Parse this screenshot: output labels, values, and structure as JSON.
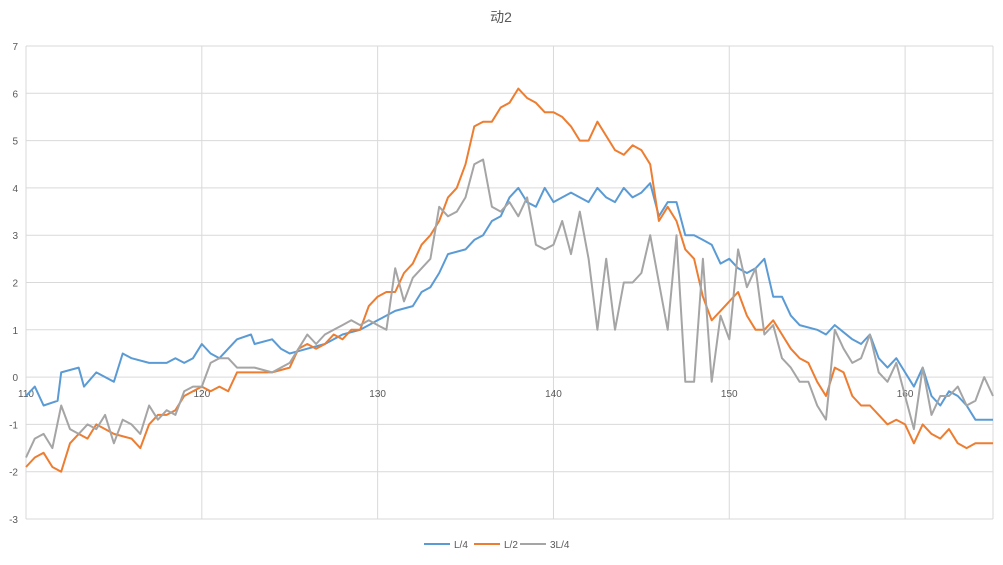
{
  "chart_data": {
    "type": "line",
    "title": "动2",
    "xlabel": "",
    "ylabel": "",
    "xlim": [
      110,
      165
    ],
    "ylim": [
      -3,
      7
    ],
    "xticks": [
      110,
      120,
      130,
      140,
      150,
      160
    ],
    "yticks": [
      -3,
      -2,
      -1,
      0,
      1,
      2,
      3,
      4,
      5,
      6,
      7
    ],
    "grid": true,
    "legend_position": "bottom",
    "series": [
      {
        "name": "L/4",
        "color": "#5b9bd5",
        "points": [
          [
            110,
            -0.4
          ],
          [
            110.5,
            -0.2
          ],
          [
            111,
            -0.6
          ],
          [
            111.8,
            -0.5
          ],
          [
            112,
            0.1
          ],
          [
            113,
            0.2
          ],
          [
            113.3,
            -0.2
          ],
          [
            114,
            0.1
          ],
          [
            115,
            -0.1
          ],
          [
            115.5,
            0.5
          ],
          [
            116,
            0.4
          ],
          [
            117,
            0.3
          ],
          [
            118,
            0.3
          ],
          [
            118.5,
            0.4
          ],
          [
            119,
            0.3
          ],
          [
            119.5,
            0.4
          ],
          [
            120,
            0.7
          ],
          [
            120.5,
            0.5
          ],
          [
            121,
            0.4
          ],
          [
            122,
            0.8
          ],
          [
            122.8,
            0.9
          ],
          [
            123,
            0.7
          ],
          [
            124,
            0.8
          ],
          [
            124.5,
            0.6
          ],
          [
            125,
            0.5
          ],
          [
            126,
            0.6
          ],
          [
            127,
            0.7
          ],
          [
            128,
            0.9
          ],
          [
            129,
            1.0
          ],
          [
            129.5,
            1.1
          ],
          [
            130,
            1.2
          ],
          [
            131,
            1.4
          ],
          [
            132,
            1.5
          ],
          [
            132.5,
            1.8
          ],
          [
            133,
            1.9
          ],
          [
            133.5,
            2.2
          ],
          [
            134,
            2.6
          ],
          [
            135,
            2.7
          ],
          [
            135.5,
            2.9
          ],
          [
            136,
            3.0
          ],
          [
            136.5,
            3.3
          ],
          [
            137,
            3.4
          ],
          [
            137.5,
            3.8
          ],
          [
            138,
            4.0
          ],
          [
            138.5,
            3.7
          ],
          [
            139,
            3.6
          ],
          [
            139.5,
            4.0
          ],
          [
            140,
            3.7
          ],
          [
            140.5,
            3.8
          ],
          [
            141,
            3.9
          ],
          [
            141.5,
            3.8
          ],
          [
            142,
            3.7
          ],
          [
            142.5,
            4.0
          ],
          [
            143,
            3.8
          ],
          [
            143.5,
            3.7
          ],
          [
            144,
            4.0
          ],
          [
            144.5,
            3.8
          ],
          [
            145,
            3.9
          ],
          [
            145.5,
            4.1
          ],
          [
            146,
            3.4
          ],
          [
            146.5,
            3.7
          ],
          [
            147,
            3.7
          ],
          [
            147.5,
            3.0
          ],
          [
            148,
            3.0
          ],
          [
            148.5,
            2.9
          ],
          [
            149,
            2.8
          ],
          [
            149.5,
            2.4
          ],
          [
            150,
            2.5
          ],
          [
            150.5,
            2.3
          ],
          [
            151,
            2.2
          ],
          [
            151.5,
            2.3
          ],
          [
            152,
            2.5
          ],
          [
            152.5,
            1.7
          ],
          [
            153,
            1.7
          ],
          [
            153.5,
            1.3
          ],
          [
            154,
            1.1
          ],
          [
            155,
            1.0
          ],
          [
            155.5,
            0.9
          ],
          [
            156,
            1.1
          ],
          [
            157,
            0.8
          ],
          [
            157.5,
            0.7
          ],
          [
            158,
            0.9
          ],
          [
            158.5,
            0.4
          ],
          [
            159,
            0.2
          ],
          [
            159.5,
            0.4
          ],
          [
            160,
            0.1
          ],
          [
            160.5,
            -0.2
          ],
          [
            161,
            0.2
          ],
          [
            161.5,
            -0.4
          ],
          [
            162,
            -0.6
          ],
          [
            162.5,
            -0.3
          ],
          [
            163,
            -0.4
          ],
          [
            163.5,
            -0.6
          ],
          [
            164,
            -0.9
          ],
          [
            164.5,
            -0.9
          ],
          [
            165,
            -0.9
          ]
        ]
      },
      {
        "name": "L/2",
        "color": "#ed7d31",
        "points": [
          [
            110,
            -1.9
          ],
          [
            110.5,
            -1.7
          ],
          [
            111,
            -1.6
          ],
          [
            111.5,
            -1.9
          ],
          [
            112,
            -2.0
          ],
          [
            112.5,
            -1.4
          ],
          [
            113,
            -1.2
          ],
          [
            113.5,
            -1.3
          ],
          [
            114,
            -1.0
          ],
          [
            114.5,
            -1.1
          ],
          [
            115,
            -1.2
          ],
          [
            116,
            -1.3
          ],
          [
            116.5,
            -1.5
          ],
          [
            117,
            -1.0
          ],
          [
            117.5,
            -0.8
          ],
          [
            118,
            -0.8
          ],
          [
            118.5,
            -0.7
          ],
          [
            119,
            -0.4
          ],
          [
            119.5,
            -0.3
          ],
          [
            120,
            -0.2
          ],
          [
            120.5,
            -0.3
          ],
          [
            121,
            -0.2
          ],
          [
            121.5,
            -0.3
          ],
          [
            122,
            0.1
          ],
          [
            123,
            0.1
          ],
          [
            124,
            0.1
          ],
          [
            125,
            0.2
          ],
          [
            125.5,
            0.6
          ],
          [
            126,
            0.7
          ],
          [
            126.5,
            0.6
          ],
          [
            127,
            0.7
          ],
          [
            127.5,
            0.9
          ],
          [
            128,
            0.8
          ],
          [
            128.5,
            1.0
          ],
          [
            129,
            1.0
          ],
          [
            129.5,
            1.5
          ],
          [
            130,
            1.7
          ],
          [
            130.5,
            1.8
          ],
          [
            131,
            1.8
          ],
          [
            131.5,
            2.2
          ],
          [
            132,
            2.4
          ],
          [
            132.5,
            2.8
          ],
          [
            133,
            3.0
          ],
          [
            133.5,
            3.3
          ],
          [
            134,
            3.8
          ],
          [
            134.5,
            4.0
          ],
          [
            135,
            4.5
          ],
          [
            135.5,
            5.3
          ],
          [
            136,
            5.4
          ],
          [
            136.5,
            5.4
          ],
          [
            137,
            5.7
          ],
          [
            137.5,
            5.8
          ],
          [
            138,
            6.1
          ],
          [
            138.5,
            5.9
          ],
          [
            139,
            5.8
          ],
          [
            139.5,
            5.6
          ],
          [
            140,
            5.6
          ],
          [
            140.5,
            5.5
          ],
          [
            141,
            5.3
          ],
          [
            141.5,
            5.0
          ],
          [
            142,
            5.0
          ],
          [
            142.5,
            5.4
          ],
          [
            143,
            5.1
          ],
          [
            143.5,
            4.8
          ],
          [
            144,
            4.7
          ],
          [
            144.5,
            4.9
          ],
          [
            145,
            4.8
          ],
          [
            145.5,
            4.5
          ],
          [
            146,
            3.3
          ],
          [
            146.5,
            3.6
          ],
          [
            147,
            3.3
          ],
          [
            147.5,
            2.7
          ],
          [
            148,
            2.5
          ],
          [
            148.5,
            1.7
          ],
          [
            149,
            1.2
          ],
          [
            149.5,
            1.4
          ],
          [
            150,
            1.6
          ],
          [
            150.5,
            1.8
          ],
          [
            151,
            1.3
          ],
          [
            151.5,
            1.0
          ],
          [
            152,
            1.0
          ],
          [
            152.5,
            1.2
          ],
          [
            153,
            0.9
          ],
          [
            153.5,
            0.6
          ],
          [
            154,
            0.4
          ],
          [
            154.5,
            0.3
          ],
          [
            155,
            -0.1
          ],
          [
            155.5,
            -0.4
          ],
          [
            156,
            0.2
          ],
          [
            156.5,
            0.1
          ],
          [
            157,
            -0.4
          ],
          [
            157.5,
            -0.6
          ],
          [
            158,
            -0.6
          ],
          [
            158.5,
            -0.8
          ],
          [
            159,
            -1.0
          ],
          [
            159.5,
            -0.9
          ],
          [
            160,
            -1.0
          ],
          [
            160.5,
            -1.4
          ],
          [
            161,
            -1.0
          ],
          [
            161.5,
            -1.2
          ],
          [
            162,
            -1.3
          ],
          [
            162.5,
            -1.1
          ],
          [
            163,
            -1.4
          ],
          [
            163.5,
            -1.5
          ],
          [
            164,
            -1.4
          ],
          [
            164.5,
            -1.4
          ],
          [
            165,
            -1.4
          ]
        ]
      },
      {
        "name": "3L/4",
        "color": "#a5a5a5",
        "points": [
          [
            110,
            -1.7
          ],
          [
            110.5,
            -1.3
          ],
          [
            111,
            -1.2
          ],
          [
            111.5,
            -1.5
          ],
          [
            112,
            -0.6
          ],
          [
            112.5,
            -1.1
          ],
          [
            113,
            -1.2
          ],
          [
            113.5,
            -1.0
          ],
          [
            114,
            -1.1
          ],
          [
            114.5,
            -0.8
          ],
          [
            115,
            -1.4
          ],
          [
            115.5,
            -0.9
          ],
          [
            116,
            -1.0
          ],
          [
            116.5,
            -1.2
          ],
          [
            117,
            -0.6
          ],
          [
            117.5,
            -0.9
          ],
          [
            118,
            -0.7
          ],
          [
            118.5,
            -0.8
          ],
          [
            119,
            -0.3
          ],
          [
            119.5,
            -0.2
          ],
          [
            120,
            -0.2
          ],
          [
            120.5,
            0.3
          ],
          [
            121,
            0.4
          ],
          [
            121.5,
            0.4
          ],
          [
            122,
            0.2
          ],
          [
            123,
            0.2
          ],
          [
            124,
            0.1
          ],
          [
            125,
            0.3
          ],
          [
            125.5,
            0.6
          ],
          [
            126,
            0.9
          ],
          [
            126.5,
            0.7
          ],
          [
            127,
            0.9
          ],
          [
            127.5,
            1.0
          ],
          [
            128,
            1.1
          ],
          [
            128.5,
            1.2
          ],
          [
            129,
            1.1
          ],
          [
            129.5,
            1.2
          ],
          [
            130,
            1.1
          ],
          [
            130.5,
            1.0
          ],
          [
            131,
            2.3
          ],
          [
            131.5,
            1.6
          ],
          [
            132,
            2.1
          ],
          [
            132.5,
            2.3
          ],
          [
            133,
            2.5
          ],
          [
            133.5,
            3.6
          ],
          [
            134,
            3.4
          ],
          [
            134.5,
            3.5
          ],
          [
            135,
            3.8
          ],
          [
            135.5,
            4.5
          ],
          [
            136,
            4.6
          ],
          [
            136.5,
            3.6
          ],
          [
            137,
            3.5
          ],
          [
            137.5,
            3.7
          ],
          [
            138,
            3.4
          ],
          [
            138.5,
            3.8
          ],
          [
            139,
            2.8
          ],
          [
            139.5,
            2.7
          ],
          [
            140,
            2.8
          ],
          [
            140.5,
            3.3
          ],
          [
            141,
            2.6
          ],
          [
            141.5,
            3.5
          ],
          [
            142,
            2.5
          ],
          [
            142.5,
            1.0
          ],
          [
            143,
            2.5
          ],
          [
            143.5,
            1.0
          ],
          [
            144,
            2.0
          ],
          [
            144.5,
            2.0
          ],
          [
            145,
            2.2
          ],
          [
            145.5,
            3.0
          ],
          [
            146,
            2.0
          ],
          [
            146.5,
            1.0
          ],
          [
            147,
            3.0
          ],
          [
            147.5,
            -0.1
          ],
          [
            148,
            -0.1
          ],
          [
            148.5,
            2.5
          ],
          [
            149,
            -0.1
          ],
          [
            149.5,
            1.3
          ],
          [
            150,
            0.8
          ],
          [
            150.5,
            2.7
          ],
          [
            151,
            1.9
          ],
          [
            151.5,
            2.3
          ],
          [
            152,
            0.9
          ],
          [
            152.5,
            1.1
          ],
          [
            153,
            0.4
          ],
          [
            153.5,
            0.2
          ],
          [
            154,
            -0.1
          ],
          [
            154.5,
            -0.1
          ],
          [
            155,
            -0.6
          ],
          [
            155.5,
            -0.9
          ],
          [
            156,
            1.0
          ],
          [
            156.5,
            0.6
          ],
          [
            157,
            0.3
          ],
          [
            157.5,
            0.4
          ],
          [
            158,
            0.9
          ],
          [
            158.5,
            0.1
          ],
          [
            159,
            -0.1
          ],
          [
            159.5,
            0.3
          ],
          [
            160,
            -0.4
          ],
          [
            160.5,
            -1.1
          ],
          [
            161,
            0.2
          ],
          [
            161.5,
            -0.8
          ],
          [
            162,
            -0.4
          ],
          [
            162.5,
            -0.4
          ],
          [
            163,
            -0.2
          ],
          [
            163.5,
            -0.6
          ],
          [
            164,
            -0.5
          ],
          [
            164.5,
            0.0
          ],
          [
            165,
            -0.4
          ]
        ]
      }
    ]
  }
}
